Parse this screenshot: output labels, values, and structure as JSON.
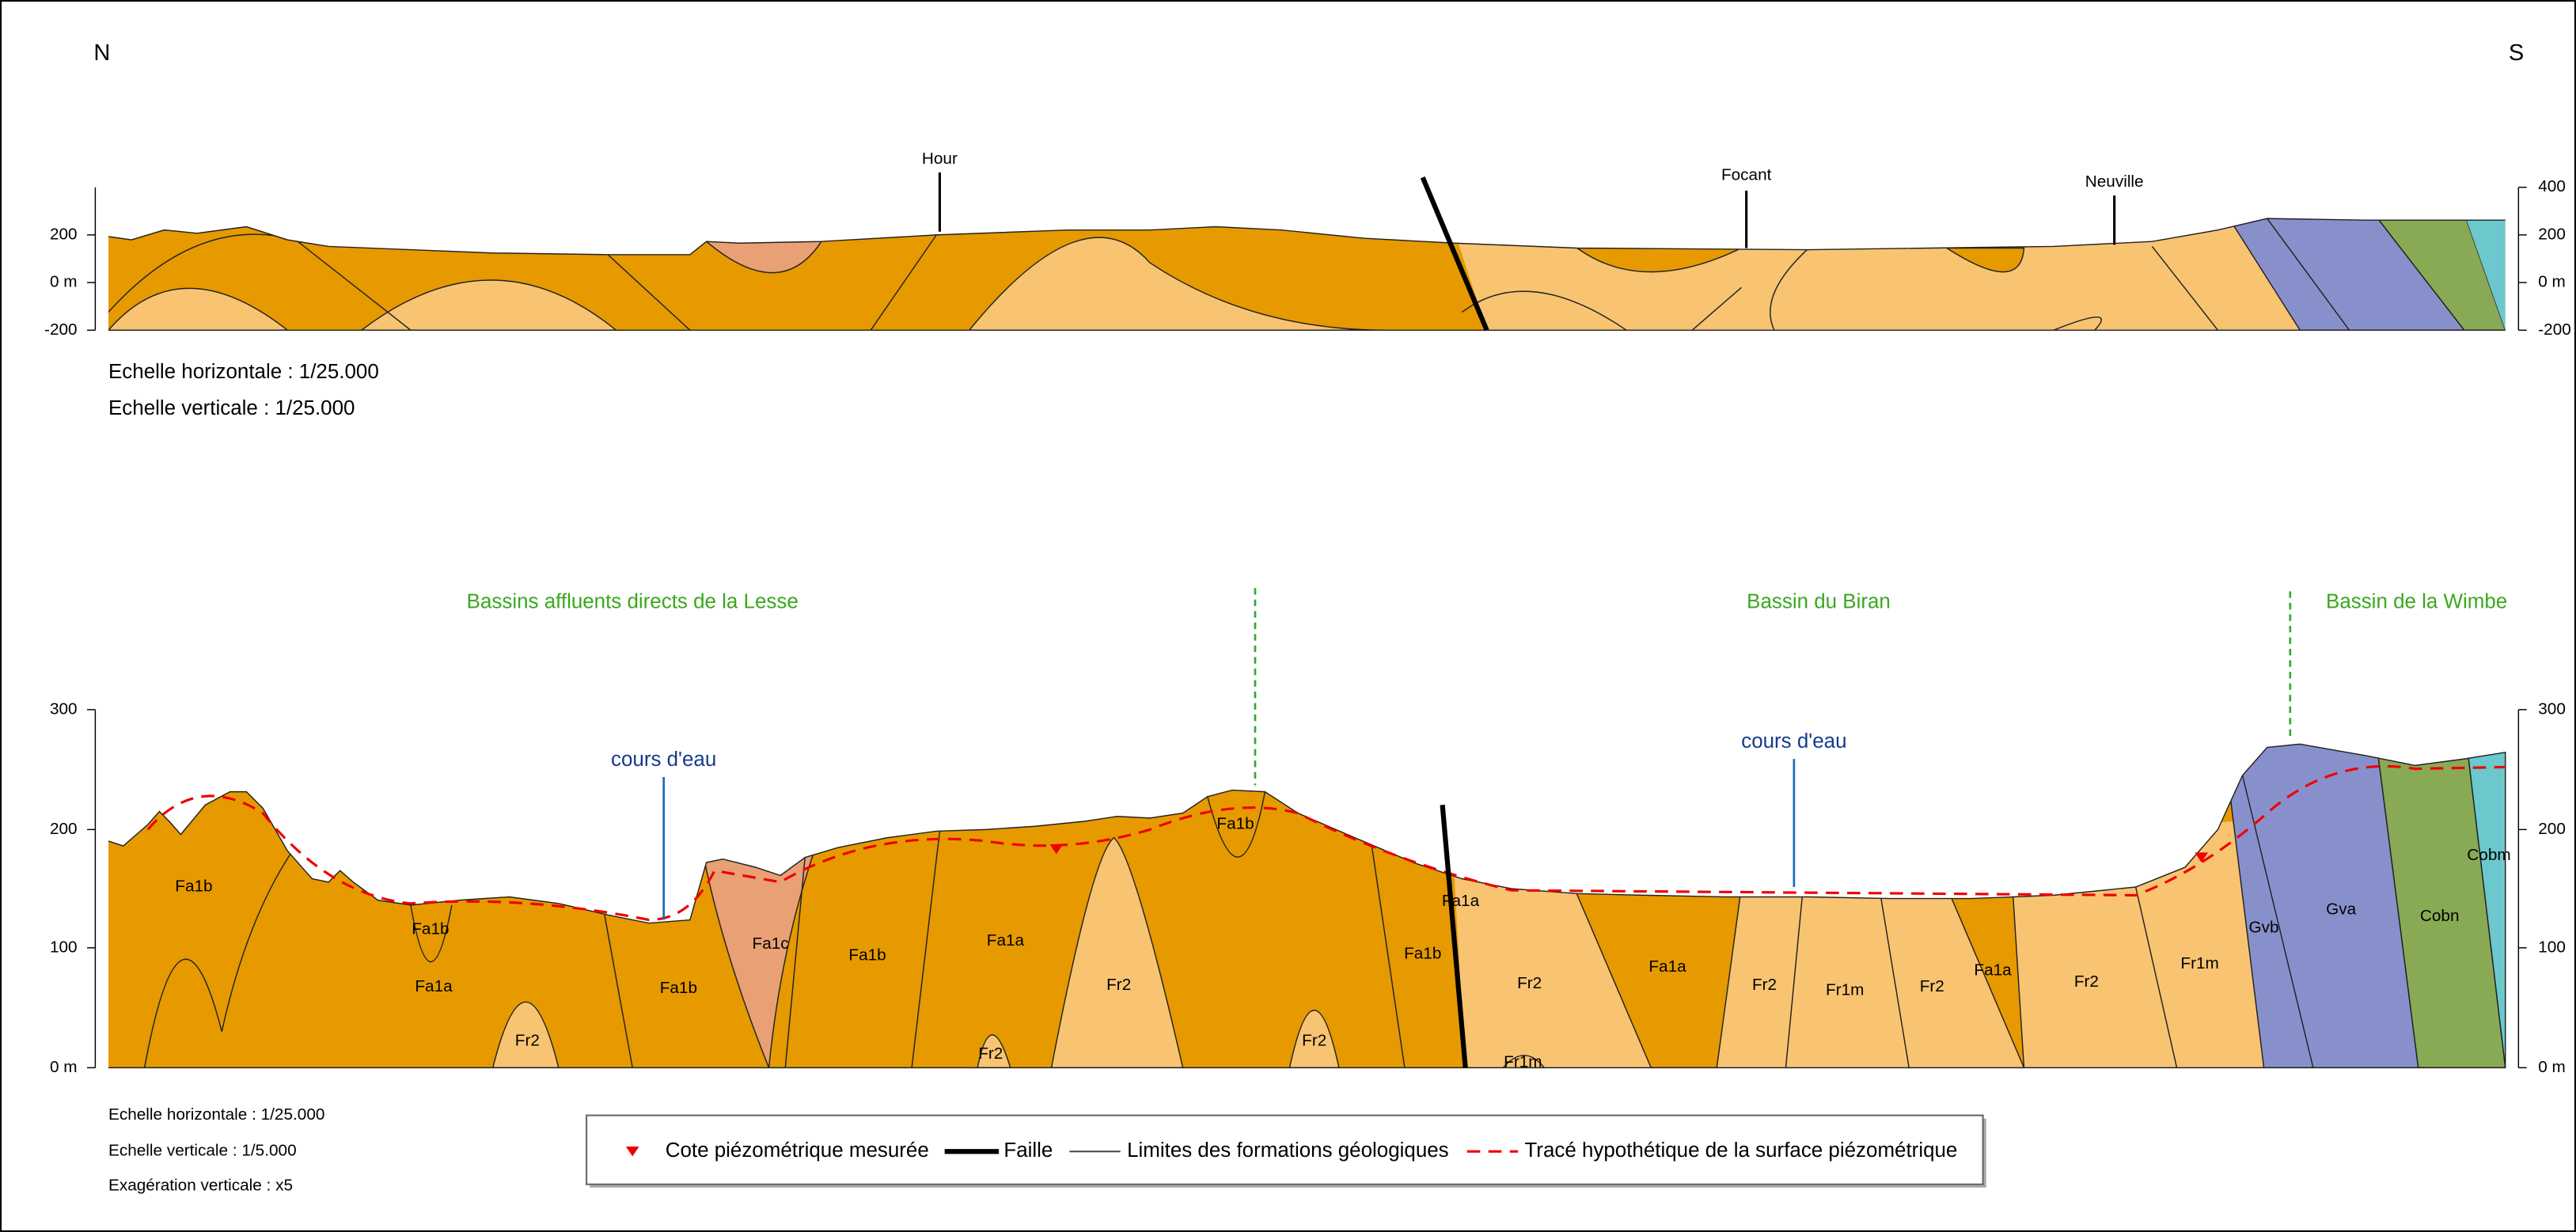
{
  "header": {
    "north": "N",
    "south": "S"
  },
  "profile_top": {
    "places": [
      "Hour",
      "Focant",
      "Neuville"
    ],
    "left_ticks": [
      "200",
      "0 m",
      "-200"
    ],
    "right_ticks": [
      "400",
      "200",
      "0 m",
      "-200"
    ],
    "scales": [
      "Echelle horizontale : 1/25.000",
      "Echelle verticale : 1/25.000"
    ]
  },
  "profile_bottom": {
    "basins": [
      "Bassins affluents directs de la Lesse",
      "Bassin du Biran",
      "Bassin de la Wimbe"
    ],
    "rivers": [
      "cours d'eau",
      "cours d'eau"
    ],
    "left_ticks": [
      "300",
      "200",
      "100",
      "0 m"
    ],
    "right_ticks": [
      "300",
      "200",
      "100",
      "0 m"
    ],
    "formations": [
      "Fa1b",
      "Fa1b",
      "Fa1a",
      "Fr2",
      "Fa1b",
      "Fa1c",
      "Fa1b",
      "Fa1a",
      "Fr2",
      "Fr2",
      "Fr2",
      "Fa1b",
      "Fa1b",
      "Fa1a",
      "Fr2",
      "Fr1m",
      "Fa1a",
      "Fr2",
      "Fr1m",
      "Fr2",
      "Fa1a",
      "Fr2",
      "Fr1m",
      "Gvb",
      "Gva",
      "Cobn",
      "Cobm"
    ],
    "scales": [
      "Echelle horizontale : 1/25.000",
      "Echelle verticale : 1/5.000",
      "Exagération verticale : x5"
    ]
  },
  "legend": [
    "Cote piézométrique mesurée",
    "Faille",
    "Limites des formations géologiques",
    "Tracé hypothétique de la surface piézométrique"
  ]
}
